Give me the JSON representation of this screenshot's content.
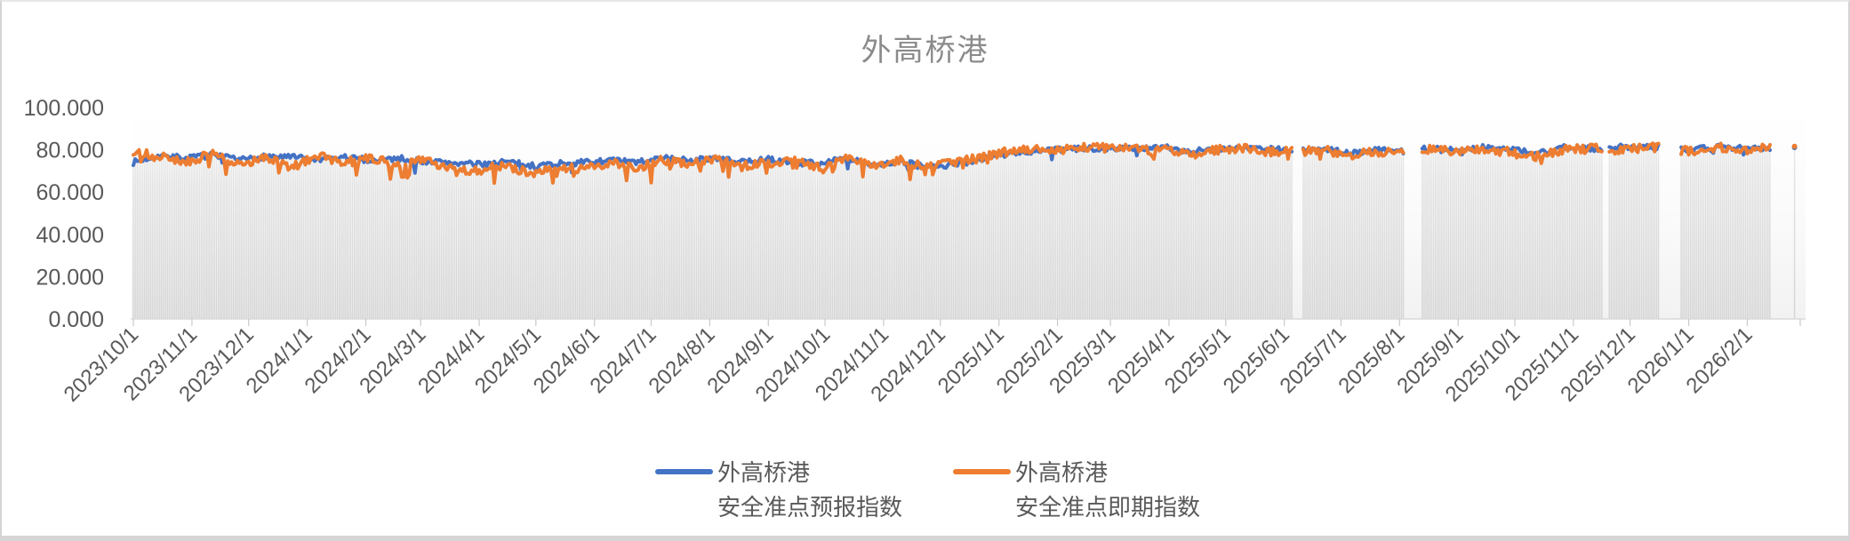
{
  "title": "外高桥港",
  "legend": {
    "forecast": {
      "line1": "外高桥港",
      "line2": "安全准点预报指数",
      "color": "#4472C4"
    },
    "spot": {
      "line1": "外高桥港",
      "line2": "安全准点即期指数",
      "color": "#ED7D31"
    }
  },
  "colors": {
    "title_text": "#8b8b8b",
    "axis_text": "#595959",
    "axis_line": "#d9d9d9",
    "tick_mark": "#c9c9c9",
    "bar_top": "#eaeaea",
    "bar_bottom": "#d5d5d5",
    "forecast_line": "#4472C4",
    "spot_line": "#ED7D31"
  },
  "chart_data": {
    "type": "line",
    "title": "外高桥港",
    "xlabel": "",
    "ylabel": "",
    "ylim": [
      0,
      100
    ],
    "grid": "none",
    "legend_position": "bottom",
    "x_is_daily_dates": true,
    "x_start_date": "2023/10/1",
    "x_axis_end_date": "2026/3/1",
    "x_tick_labels": [
      "2023/10/1",
      "2023/11/1",
      "2023/12/1",
      "2024/1/1",
      "2024/2/1",
      "2024/3/1",
      "2024/4/1",
      "2024/5/1",
      "2024/6/1",
      "2024/7/1",
      "2024/8/1",
      "2024/9/1",
      "2024/10/1",
      "2024/11/1",
      "2024/12/1",
      "2025/1/1",
      "2025/2/1",
      "2025/3/1",
      "2025/4/1",
      "2025/5/1",
      "2025/6/1",
      "2025/7/1",
      "2025/8/1",
      "2025/9/1",
      "2025/10/1",
      "2025/11/1",
      "2025/12/1",
      "2026/1/1",
      "2026/2/1"
    ],
    "x_tick_days": [
      0,
      31,
      61,
      92,
      123,
      152,
      183,
      213,
      244,
      274,
      305,
      336,
      366,
      397,
      427,
      458,
      489,
      517,
      548,
      578,
      609,
      639,
      670,
      701,
      731,
      762,
      792,
      823,
      854
    ],
    "x_axis_end_day": 882,
    "y_tick_labels": [
      "100.000",
      "80.000",
      "60.000",
      "40.000",
      "20.000",
      "0.000"
    ],
    "y_tick_values": [
      100,
      80,
      60,
      40,
      20,
      0
    ],
    "last_day": 879,
    "data_gaps_days": [
      [
        614,
        618
      ],
      [
        673,
        681
      ],
      [
        778,
        780
      ],
      [
        808,
        818
      ],
      [
        867,
        878
      ]
    ],
    "background_bars": {
      "present": true,
      "per_day": true,
      "follows": "max(series)",
      "color_top": "#eaeaea",
      "color_bottom": "#d5d5d5"
    },
    "series": [
      {
        "name": "外高桥港 安全准点预报指数",
        "color": "#4472C4",
        "anchor_days": [
          0,
          14,
          28,
          42,
          56,
          70,
          84,
          98,
          112,
          126,
          140,
          154,
          168,
          182,
          196,
          210,
          224,
          238,
          252,
          266,
          280,
          294,
          308,
          322,
          336,
          350,
          364,
          378,
          392,
          406,
          420,
          434,
          448,
          462,
          476,
          490,
          504,
          518,
          532,
          546,
          560,
          574,
          588,
          602,
          616,
          630,
          644,
          658,
          672,
          686,
          700,
          714,
          728,
          742,
          756,
          770,
          784,
          798,
          812,
          826,
          840,
          854,
          868,
          882
        ],
        "anchor_values": [
          74,
          77.5,
          76,
          77.5,
          75,
          77,
          76.5,
          75,
          76.5,
          75,
          76,
          74.5,
          74,
          73,
          74.5,
          72.5,
          73.5,
          74,
          75,
          74,
          76,
          75,
          76,
          74,
          75.5,
          73.5,
          74.5,
          75.5,
          73,
          74.5,
          71.5,
          73,
          75.5,
          78,
          79,
          80,
          80.5,
          81,
          80.5,
          81,
          79.5,
          80.5,
          81,
          80.5,
          79.5,
          80,
          78.5,
          80,
          79.5,
          80.5,
          79.5,
          81,
          80.5,
          78.5,
          81,
          80.5,
          81,
          82,
          81,
          80,
          81.5,
          80.5,
          81,
          82
        ]
      },
      {
        "name": "外高桥港 安全准点即期指数",
        "color": "#ED7D31",
        "anchor_days": [
          0,
          14,
          28,
          42,
          56,
          70,
          84,
          98,
          112,
          126,
          140,
          154,
          168,
          182,
          196,
          210,
          224,
          238,
          252,
          266,
          280,
          294,
          308,
          322,
          336,
          350,
          364,
          378,
          392,
          406,
          420,
          434,
          448,
          462,
          476,
          490,
          504,
          518,
          532,
          546,
          560,
          574,
          588,
          602,
          616,
          630,
          644,
          658,
          672,
          686,
          700,
          714,
          728,
          742,
          756,
          770,
          784,
          798,
          812,
          826,
          840,
          854,
          868,
          882
        ],
        "anchor_values": [
          79,
          77,
          74.5,
          78,
          73.5,
          76,
          72,
          77,
          74,
          76,
          73,
          75,
          71,
          70,
          73,
          69,
          72,
          70.5,
          74,
          71.5,
          75,
          73,
          76,
          72,
          74,
          74.5,
          72,
          76,
          73,
          75,
          72,
          74,
          76,
          79,
          80,
          80,
          81,
          81,
          80,
          80,
          78,
          80,
          81,
          79,
          79,
          80,
          77.5,
          79,
          78,
          80,
          79,
          80,
          79,
          76.5,
          80,
          81,
          80,
          81,
          81,
          79,
          81,
          80,
          81,
          81
        ]
      }
    ],
    "volatility": {
      "seed": 7,
      "era_split_day": 458,
      "forecast": {
        "amp": 1.4,
        "dip_prob_early": 0.05,
        "dip_prob_late": 0.03,
        "dip_mag_early": 5,
        "dip_mag_late": 3.5,
        "min_early": 64,
        "min_late": 73
      },
      "spot": {
        "amp": 2.1,
        "dip_prob_early": 0.1,
        "dip_prob_late": 0.05,
        "dip_mag_early": 8,
        "dip_mag_late": 4.5,
        "min_early": 57,
        "min_late": 72
      },
      "max": 84
    }
  }
}
